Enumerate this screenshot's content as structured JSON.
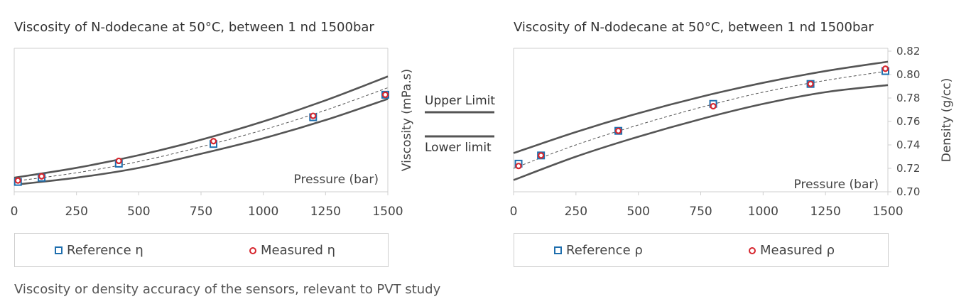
{
  "caption": "Viscosity or density accuracy of the sensors, relevant to PVT study",
  "limits": {
    "upper": "Upper Limit",
    "lower": "Lower limit"
  },
  "colors": {
    "limit": "#555555",
    "reference": "#1f6fae",
    "measured": "#d6262e",
    "trend": "#555555",
    "axis": "#cfcfcf",
    "text": "#444444"
  },
  "chart_data": [
    {
      "type": "scatter",
      "title": "Viscosity of N-dodecane at 50°C, between 1 nd 1500bar",
      "xlabel": "Pressure (bar)",
      "ylabel": "Viscosity (mPa.s)",
      "xlim": [
        0,
        1500
      ],
      "x_ticks": [
        "0",
        "250",
        "500",
        "750",
        "1000",
        "1250",
        "1500"
      ],
      "ylim": [
        0,
        1
      ],
      "y_tick_labels": [],
      "y_axis_side": "right",
      "legend": [
        "Reference η",
        "Measured η"
      ],
      "series": [
        {
          "name": "Reference η",
          "marker": "square",
          "x": [
            15,
            110,
            420,
            800,
            1200,
            1490
          ],
          "y": [
            0.07,
            0.1,
            0.2,
            0.34,
            0.53,
            0.69
          ]
        },
        {
          "name": "Measured η",
          "marker": "circle",
          "x": [
            15,
            110,
            420,
            800,
            1200,
            1490
          ],
          "y": [
            0.08,
            0.11,
            0.22,
            0.36,
            0.54,
            0.69
          ]
        },
        {
          "name": "Upper Limit",
          "style": "solid",
          "x": [
            0,
            250,
            500,
            750,
            1000,
            1250,
            1500
          ],
          "y": [
            0.1,
            0.17,
            0.26,
            0.37,
            0.5,
            0.65,
            0.82
          ]
        },
        {
          "name": "Lower limit",
          "style": "solid",
          "x": [
            0,
            250,
            500,
            750,
            1000,
            1250,
            1500
          ],
          "y": [
            0.05,
            0.1,
            0.17,
            0.27,
            0.38,
            0.51,
            0.66
          ]
        },
        {
          "name": "trend",
          "style": "dashed",
          "x": [
            0,
            250,
            500,
            750,
            1000,
            1250,
            1500
          ],
          "y": [
            0.075,
            0.135,
            0.215,
            0.32,
            0.44,
            0.58,
            0.74
          ]
        }
      ]
    },
    {
      "type": "scatter",
      "title": "Viscosity of N-dodecane at 50°C, between 1 nd 1500bar",
      "xlabel": "Pressure (bar)",
      "ylabel": "Density (g/cc)",
      "xlim": [
        0,
        1500
      ],
      "x_ticks": [
        "0",
        "250",
        "500",
        "750",
        "1000",
        "1250",
        "1500"
      ],
      "ylim": [
        0.7,
        0.82
      ],
      "y_ticks": [
        0.7,
        0.72,
        0.74,
        0.76,
        0.78,
        0.8,
        0.82
      ],
      "y_tick_labels": [
        "0.70",
        "0.72",
        "0.74",
        "0.76",
        "0.78",
        "0.80",
        "0.82"
      ],
      "y_axis_side": "right",
      "legend": [
        "Reference ρ",
        "Measured ρ"
      ],
      "series": [
        {
          "name": "Reference ρ",
          "marker": "square",
          "x": [
            20,
            110,
            420,
            800,
            1190,
            1490
          ],
          "y": [
            0.724,
            0.731,
            0.752,
            0.775,
            0.792,
            0.803
          ]
        },
        {
          "name": "Measured ρ",
          "marker": "circle",
          "x": [
            20,
            110,
            420,
            800,
            1190,
            1490
          ],
          "y": [
            0.722,
            0.731,
            0.752,
            0.773,
            0.792,
            0.805
          ]
        },
        {
          "name": "Upper Limit",
          "style": "solid",
          "x": [
            0,
            250,
            500,
            750,
            1000,
            1250,
            1500
          ],
          "y": [
            0.733,
            0.751,
            0.767,
            0.781,
            0.793,
            0.803,
            0.811
          ]
        },
        {
          "name": "Lower limit",
          "style": "solid",
          "x": [
            0,
            250,
            500,
            750,
            1000,
            1250,
            1500
          ],
          "y": [
            0.71,
            0.73,
            0.747,
            0.762,
            0.775,
            0.785,
            0.791
          ]
        },
        {
          "name": "trend",
          "style": "dashed",
          "x": [
            0,
            250,
            500,
            750,
            1000,
            1250,
            1500
          ],
          "y": [
            0.72,
            0.74,
            0.757,
            0.772,
            0.785,
            0.795,
            0.803
          ]
        }
      ]
    }
  ]
}
